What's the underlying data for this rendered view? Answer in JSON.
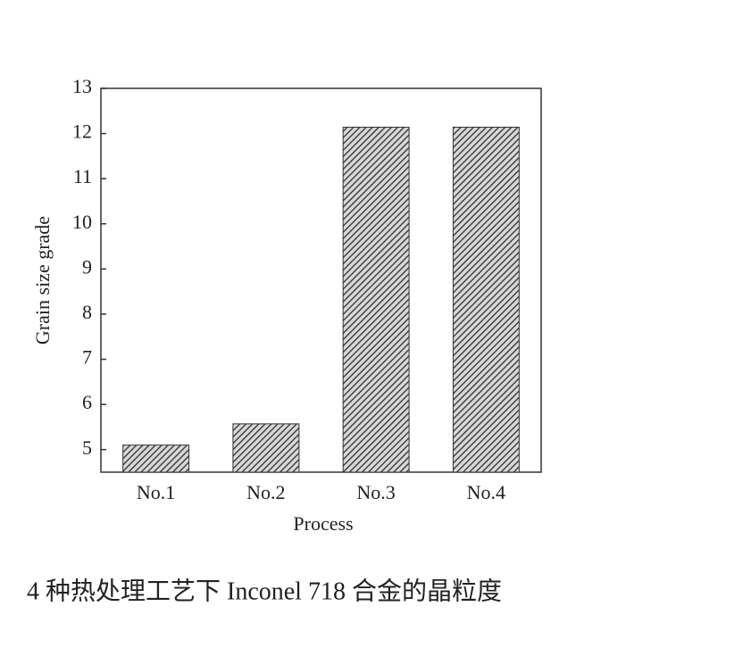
{
  "chart_data": {
    "type": "bar",
    "categories": [
      "No.1",
      "No.2",
      "No.3",
      "No.4"
    ],
    "values": [
      5.1,
      5.57,
      12.14,
      12.14
    ],
    "color": "#555555",
    "ylim": [
      4.5,
      13
    ],
    "yticks": [
      5,
      6,
      7,
      8,
      9,
      10,
      11,
      12,
      13
    ],
    "x_label": "Process",
    "y_label": "Grain size grade",
    "caption": "4 种热处理工艺下 Inconel 718 合金的晶粒度"
  }
}
